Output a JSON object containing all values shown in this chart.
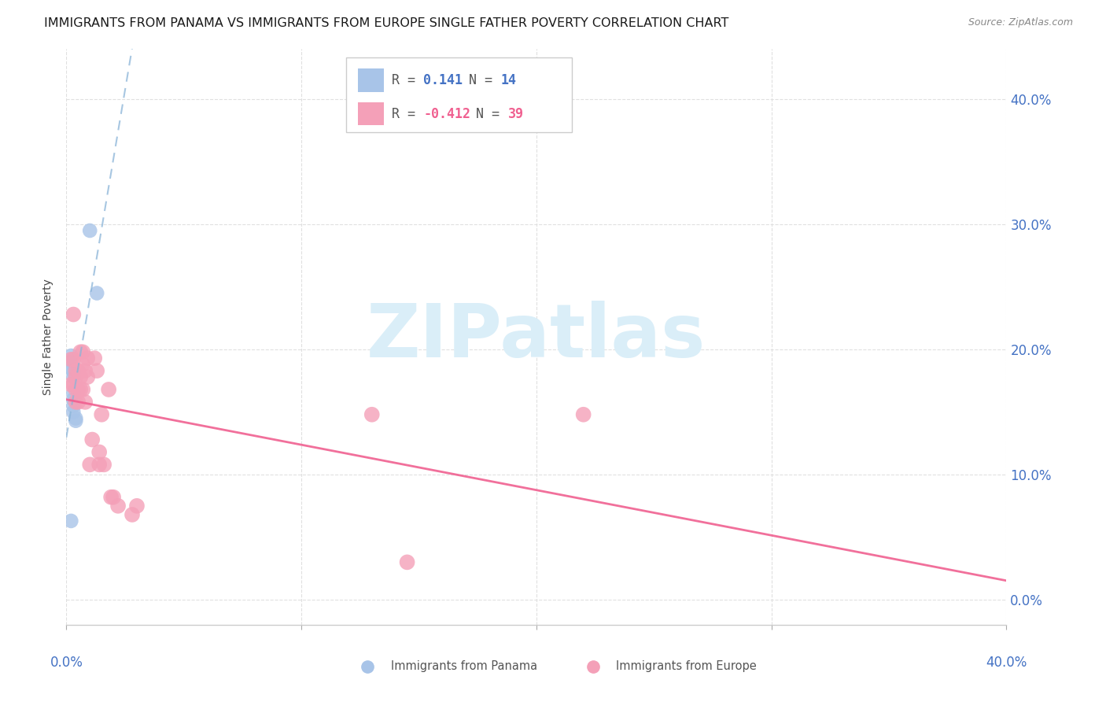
{
  "title": "IMMIGRANTS FROM PANAMA VS IMMIGRANTS FROM EUROPE SINGLE FATHER POVERTY CORRELATION CHART",
  "source": "Source: ZipAtlas.com",
  "ylabel": "Single Father Poverty",
  "ytick_values": [
    0.0,
    0.1,
    0.2,
    0.3,
    0.4
  ],
  "xlim": [
    0.0,
    0.4
  ],
  "ylim": [
    -0.02,
    0.44
  ],
  "panama_color": "#a8c4e8",
  "europe_color": "#f4a0b8",
  "trendline_panama_color": "#8ab4d8",
  "trendline_europe_color": "#f06090",
  "background_color": "#ffffff",
  "grid_color": "#e0e0e0",
  "watermark_text": "ZIPatlas",
  "watermark_color": "#daeef8",
  "panama_points_x": [
    0.002,
    0.002,
    0.002,
    0.003,
    0.003,
    0.003,
    0.003,
    0.003,
    0.003,
    0.004,
    0.004,
    0.01,
    0.013,
    0.002
  ],
  "panama_points_y": [
    0.195,
    0.19,
    0.185,
    0.182,
    0.178,
    0.165,
    0.16,
    0.155,
    0.15,
    0.145,
    0.143,
    0.295,
    0.245,
    0.063
  ],
  "europe_points_x": [
    0.002,
    0.002,
    0.003,
    0.003,
    0.003,
    0.004,
    0.004,
    0.004,
    0.004,
    0.005,
    0.005,
    0.005,
    0.006,
    0.006,
    0.006,
    0.007,
    0.007,
    0.007,
    0.008,
    0.008,
    0.009,
    0.009,
    0.01,
    0.011,
    0.012,
    0.013,
    0.014,
    0.014,
    0.015,
    0.016,
    0.018,
    0.019,
    0.02,
    0.022,
    0.028,
    0.03,
    0.13,
    0.145,
    0.22
  ],
  "europe_points_y": [
    0.192,
    0.172,
    0.228,
    0.192,
    0.172,
    0.183,
    0.168,
    0.178,
    0.158,
    0.168,
    0.183,
    0.158,
    0.178,
    0.168,
    0.198,
    0.188,
    0.168,
    0.198,
    0.183,
    0.158,
    0.193,
    0.178,
    0.108,
    0.128,
    0.193,
    0.183,
    0.118,
    0.108,
    0.148,
    0.108,
    0.168,
    0.082,
    0.082,
    0.075,
    0.068,
    0.075,
    0.148,
    0.03,
    0.148
  ],
  "title_fontsize": 11.5,
  "axis_label_fontsize": 10,
  "tick_fontsize": 12,
  "legend_fontsize": 12,
  "source_fontsize": 9
}
